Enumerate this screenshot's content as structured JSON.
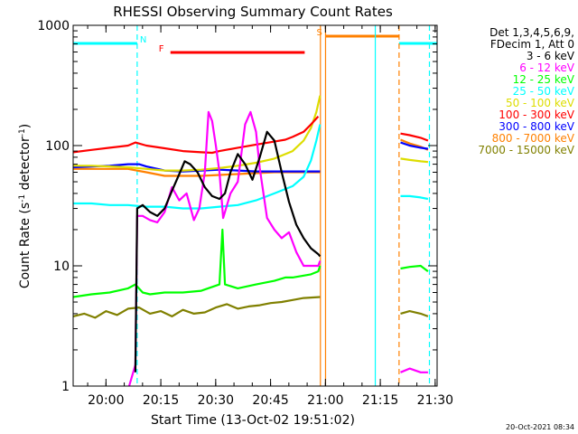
{
  "chart_data": {
    "type": "line",
    "title": "RHESSI Observing Summary Count Rates",
    "xlabel": "Start Time (13-Oct-02 19:51:02)",
    "ylabel_main": "Count Rate (s",
    "ylabel_sup1": "-1",
    "ylabel_mid": " detector",
    "ylabel_sup2": "-1",
    "ylabel_end": ")",
    "yscale": "log",
    "ylim": [
      1,
      1000
    ],
    "xlim_minutes": [
      0,
      99.5
    ],
    "x_ticks": [
      {
        "label": "20:00",
        "t": 8.97
      },
      {
        "label": "20:15",
        "t": 23.97
      },
      {
        "label": "20:30",
        "t": 38.97
      },
      {
        "label": "20:45",
        "t": 53.97
      },
      {
        "label": "21:00",
        "t": 68.97
      },
      {
        "label": "21:15",
        "t": 83.97
      },
      {
        "label": "21:30",
        "t": 98.97
      }
    ],
    "y_ticks": [
      {
        "label": "1",
        "v": 1
      },
      {
        "label": "10",
        "v": 10
      },
      {
        "label": "100",
        "v": 100
      },
      {
        "label": "1000",
        "v": 1000
      }
    ],
    "legend_header": [
      "Det 1,3,4,5,6,9,",
      "FDecim 1, Att 0"
    ],
    "series": [
      {
        "name": "3 - 6 keV",
        "color": "#000000",
        "points": [
          [
            17.0,
            1.3
          ],
          [
            17.5,
            30
          ],
          [
            19,
            32
          ],
          [
            21,
            28
          ],
          [
            23,
            26
          ],
          [
            25,
            30
          ],
          [
            27,
            42
          ],
          [
            29,
            58
          ],
          [
            30.5,
            74
          ],
          [
            32,
            70
          ],
          [
            34,
            60
          ],
          [
            36,
            45
          ],
          [
            38,
            38
          ],
          [
            40,
            36
          ],
          [
            41.5,
            40
          ],
          [
            43,
            60
          ],
          [
            45,
            85
          ],
          [
            47,
            70
          ],
          [
            49,
            52
          ],
          [
            51,
            80
          ],
          [
            53,
            130
          ],
          [
            55,
            110
          ],
          [
            57,
            60
          ],
          [
            59,
            34
          ],
          [
            61,
            22
          ],
          [
            63,
            17
          ],
          [
            65,
            14
          ],
          [
            67,
            12.5
          ],
          [
            67.5,
            12
          ]
        ]
      },
      {
        "name": "6 - 12 keV",
        "color": "#ff00ff",
        "points": [
          [
            15.3,
            1.0
          ],
          [
            17.0,
            1.5
          ],
          [
            17.5,
            26
          ],
          [
            19,
            26
          ],
          [
            21,
            24
          ],
          [
            23,
            23
          ],
          [
            25,
            28
          ],
          [
            27,
            45
          ],
          [
            29,
            35
          ],
          [
            31,
            40
          ],
          [
            33,
            24
          ],
          [
            34.5,
            30
          ],
          [
            36,
            60
          ],
          [
            37,
            190
          ],
          [
            38,
            160
          ],
          [
            39,
            100
          ],
          [
            40,
            60
          ],
          [
            41,
            25
          ],
          [
            43,
            40
          ],
          [
            45,
            50
          ],
          [
            47,
            150
          ],
          [
            48.5,
            190
          ],
          [
            50,
            130
          ],
          [
            51,
            65
          ],
          [
            53,
            25
          ],
          [
            55,
            20
          ],
          [
            57,
            17
          ],
          [
            59,
            19
          ],
          [
            61,
            13
          ],
          [
            63,
            10
          ],
          [
            65,
            10
          ],
          [
            67,
            10
          ],
          [
            67.5,
            11
          ]
        ]
      },
      {
        "name": "12 - 25 keV",
        "color": "#00ff00",
        "points": [
          [
            0,
            5.5
          ],
          [
            5,
            5.8
          ],
          [
            10,
            6
          ],
          [
            15,
            6.5
          ],
          [
            17,
            7
          ],
          [
            19,
            6
          ],
          [
            21,
            5.8
          ],
          [
            25,
            6
          ],
          [
            30,
            6
          ],
          [
            35,
            6.2
          ],
          [
            40,
            7
          ],
          [
            40.8,
            20
          ],
          [
            41.5,
            7
          ],
          [
            45,
            6.5
          ],
          [
            50,
            7
          ],
          [
            55,
            7.5
          ],
          [
            58,
            8
          ],
          [
            60,
            8
          ],
          [
            65,
            8.5
          ],
          [
            67,
            9
          ],
          [
            67.5,
            10
          ]
        ]
      },
      {
        "name": "25 - 50 keV",
        "color": "#00ffff",
        "points": [
          [
            0,
            33
          ],
          [
            5,
            33
          ],
          [
            10,
            32
          ],
          [
            15,
            32
          ],
          [
            20,
            31
          ],
          [
            25,
            31
          ],
          [
            30,
            30
          ],
          [
            35,
            30
          ],
          [
            40,
            31
          ],
          [
            45,
            32
          ],
          [
            50,
            35
          ],
          [
            55,
            40
          ],
          [
            60,
            46
          ],
          [
            63,
            55
          ],
          [
            65,
            75
          ],
          [
            66.5,
            110
          ],
          [
            67.5,
            150
          ]
        ]
      },
      {
        "name": "50 - 100 keV",
        "color": "#dddd00",
        "points": [
          [
            0,
            68
          ],
          [
            5,
            68
          ],
          [
            10,
            67
          ],
          [
            15,
            66
          ],
          [
            20,
            64
          ],
          [
            25,
            62
          ],
          [
            30,
            62
          ],
          [
            35,
            63
          ],
          [
            40,
            65
          ],
          [
            45,
            68
          ],
          [
            50,
            72
          ],
          [
            55,
            78
          ],
          [
            60,
            90
          ],
          [
            63,
            110
          ],
          [
            65,
            140
          ],
          [
            66.5,
            190
          ],
          [
            67.5,
            260
          ]
        ]
      },
      {
        "name": "100 - 300 keV",
        "color": "#ff0000",
        "points": [
          [
            0,
            88
          ],
          [
            5,
            92
          ],
          [
            10,
            96
          ],
          [
            15,
            100
          ],
          [
            17,
            106
          ],
          [
            20,
            100
          ],
          [
            25,
            95
          ],
          [
            30,
            90
          ],
          [
            35,
            88
          ],
          [
            38,
            87
          ],
          [
            40,
            90
          ],
          [
            45,
            96
          ],
          [
            50,
            102
          ],
          [
            55,
            108
          ],
          [
            58,
            112
          ],
          [
            60,
            118
          ],
          [
            63,
            130
          ],
          [
            65,
            150
          ],
          [
            67,
            175
          ]
        ]
      },
      {
        "name": "300 - 800 keV",
        "color": "#0000ff",
        "points": [
          [
            0,
            66
          ],
          [
            5,
            67
          ],
          [
            10,
            68
          ],
          [
            15,
            70
          ],
          [
            18,
            70
          ],
          [
            20,
            67
          ],
          [
            25,
            62
          ],
          [
            30,
            61
          ],
          [
            35,
            62
          ],
          [
            40,
            63
          ],
          [
            45,
            62
          ],
          [
            50,
            61
          ],
          [
            55,
            61
          ],
          [
            60,
            61
          ],
          [
            65,
            61
          ],
          [
            67.5,
            61
          ]
        ]
      },
      {
        "name": "800 - 7000 keV",
        "color": "#ff8000",
        "points": [
          [
            0,
            64
          ],
          [
            5,
            64
          ],
          [
            10,
            64
          ],
          [
            15,
            64
          ],
          [
            20,
            60
          ],
          [
            25,
            56
          ],
          [
            30,
            56
          ],
          [
            35,
            56
          ],
          [
            40,
            57
          ],
          [
            45,
            58
          ],
          [
            50,
            59
          ],
          [
            55,
            60
          ],
          [
            60,
            60
          ],
          [
            65,
            60
          ],
          [
            67.5,
            60
          ]
        ]
      },
      {
        "name": "7000 - 15000 keV",
        "color": "#808000",
        "points": [
          [
            0,
            3.8
          ],
          [
            3,
            4.0
          ],
          [
            6,
            3.7
          ],
          [
            9,
            4.2
          ],
          [
            12,
            3.9
          ],
          [
            15,
            4.4
          ],
          [
            18,
            4.5
          ],
          [
            21,
            4.0
          ],
          [
            24,
            4.2
          ],
          [
            27,
            3.8
          ],
          [
            30,
            4.3
          ],
          [
            33,
            4.0
          ],
          [
            36,
            4.1
          ],
          [
            39,
            4.5
          ],
          [
            42,
            4.8
          ],
          [
            45,
            4.4
          ],
          [
            48,
            4.6
          ],
          [
            51,
            4.7
          ],
          [
            54,
            4.9
          ],
          [
            57,
            5.0
          ],
          [
            60,
            5.2
          ],
          [
            63,
            5.4
          ],
          [
            67.5,
            5.5
          ]
        ]
      }
    ],
    "series_after_gap": [
      {
        "name": "3 - 6 keV",
        "color": "#000000",
        "points": []
      },
      {
        "name": "6 - 12 keV",
        "color": "#ff00ff",
        "points": [
          [
            89.5,
            1.3
          ],
          [
            92,
            1.4
          ],
          [
            95,
            1.3
          ],
          [
            97,
            1.3
          ]
        ]
      },
      {
        "name": "12 - 25 keV",
        "color": "#00ff00",
        "points": [
          [
            89.5,
            9.5
          ],
          [
            92,
            9.8
          ],
          [
            95,
            10
          ],
          [
            97,
            9
          ]
        ]
      },
      {
        "name": "25 - 50 keV",
        "color": "#00ffff",
        "points": [
          [
            89.5,
            38
          ],
          [
            92,
            38
          ],
          [
            95,
            37
          ],
          [
            97,
            36
          ]
        ]
      },
      {
        "name": "50 - 100 keV",
        "color": "#dddd00",
        "points": [
          [
            89.5,
            78
          ],
          [
            92,
            76
          ],
          [
            95,
            74
          ],
          [
            97,
            73
          ]
        ]
      },
      {
        "name": "100 - 300 keV",
        "color": "#ff0000",
        "points": [
          [
            89.5,
            126
          ],
          [
            92,
            122
          ],
          [
            95,
            116
          ],
          [
            97,
            110
          ]
        ]
      },
      {
        "name": "300 - 800 keV",
        "color": "#0000ff",
        "points": [
          [
            89.5,
            106
          ],
          [
            92,
            100
          ],
          [
            95,
            96
          ],
          [
            97,
            94
          ]
        ]
      },
      {
        "name": "800 - 7000 keV",
        "color": "#ff8000",
        "points": [
          [
            89.5,
            112
          ],
          [
            92,
            104
          ],
          [
            95,
            98
          ],
          [
            97,
            92
          ]
        ]
      },
      {
        "name": "7000 - 15000 keV",
        "color": "#808000",
        "points": [
          [
            89.5,
            4.0
          ],
          [
            92,
            4.2
          ],
          [
            95,
            4.0
          ],
          [
            97,
            3.8
          ]
        ]
      }
    ],
    "flags": [
      {
        "label": "N",
        "color": "#00ffff",
        "level": 0,
        "spans": [
          [
            0,
            17.5
          ],
          [
            97.4,
            99.5
          ]
        ]
      },
      {
        "label": "F",
        "color": "#ff0000",
        "level": 1,
        "spans": [
          [
            26.6,
            63.3
          ]
        ]
      },
      {
        "label": "S",
        "color": "#ff8000",
        "level": 2,
        "spans": [
          [
            69,
            89.1
          ]
        ]
      },
      {
        "label": "",
        "color": "#00ffff",
        "level": 0,
        "spans": [
          [
            89.1,
            97.4
          ]
        ]
      }
    ],
    "vlines": [
      {
        "t": 17.5,
        "color": "#00ffff",
        "style": "dashed"
      },
      {
        "t": 67.6,
        "color": "#ff8000",
        "style": "solid"
      },
      {
        "t": 69.0,
        "color": "#ff8000",
        "style": "solid"
      },
      {
        "t": 82.6,
        "color": "#00ffff",
        "style": "solid"
      },
      {
        "t": 89.1,
        "color": "#ff8000",
        "style": "dashed"
      },
      {
        "t": 97.4,
        "color": "#00ffff",
        "style": "dashed"
      }
    ],
    "footer_date": "20-Oct-2021 08:34"
  }
}
